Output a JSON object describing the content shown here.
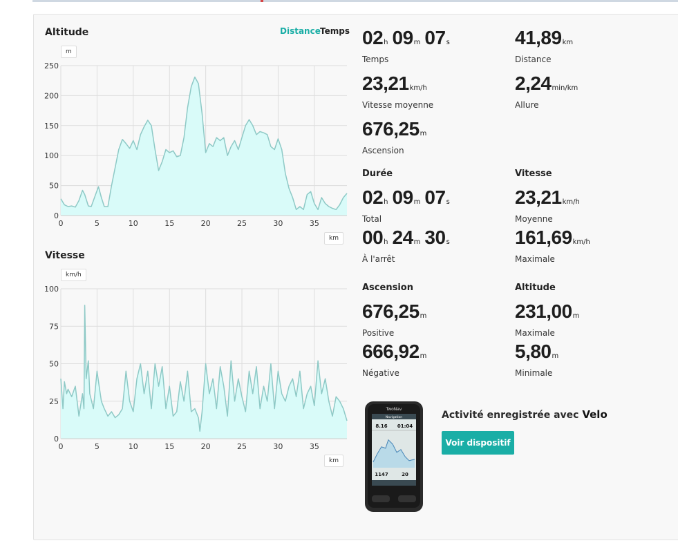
{
  "colors": {
    "accent": "#1aaea6",
    "fill": "#d9fbf9",
    "line": "#8ec9c6",
    "grid": "#dddddd"
  },
  "altitude_chart": {
    "title": "Altitude",
    "toggle_distance": "Distance",
    "toggle_time": "Temps",
    "y_unit": "m",
    "x_unit": "km"
  },
  "speed_chart": {
    "title": "Vitesse",
    "y_unit": "km/h",
    "x_unit": "km"
  },
  "chart_data": [
    {
      "type": "area",
      "title": "Altitude",
      "ylabel": "m",
      "xlabel": "km",
      "xlim": [
        0,
        39.5
      ],
      "ylim": [
        0,
        250
      ],
      "x_ticks": [
        0,
        5,
        10,
        15,
        20,
        25,
        30,
        35
      ],
      "y_ticks": [
        0,
        50,
        100,
        150,
        200,
        250
      ],
      "grid": true,
      "x": [
        0,
        0.5,
        1,
        1.5,
        2,
        2.5,
        3,
        3.3,
        3.8,
        4.2,
        4.8,
        5.2,
        5.6,
        6,
        6.5,
        7,
        7.5,
        8,
        8.5,
        9,
        9.5,
        10,
        10.5,
        11,
        11.5,
        12,
        12.5,
        13,
        13.5,
        14,
        14.5,
        15,
        15.5,
        16,
        16.5,
        17,
        17.5,
        18,
        18.5,
        19,
        19.5,
        20,
        20.5,
        21,
        21.5,
        22,
        22.5,
        23,
        23.5,
        24,
        24.5,
        25,
        25.5,
        26,
        26.5,
        27,
        27.5,
        28,
        28.5,
        29,
        29.5,
        30,
        30.5,
        31,
        31.5,
        32,
        32.5,
        33,
        33.5,
        34,
        34.5,
        35,
        35.5,
        36,
        36.5,
        37,
        37.5,
        38,
        38.5,
        39,
        39.5
      ],
      "values": [
        28,
        18,
        15,
        16,
        14,
        25,
        42,
        35,
        16,
        15,
        35,
        48,
        30,
        15,
        15,
        50,
        80,
        110,
        127,
        120,
        112,
        125,
        110,
        135,
        148,
        159,
        150,
        110,
        75,
        90,
        110,
        105,
        108,
        98,
        100,
        130,
        180,
        215,
        231,
        220,
        170,
        105,
        120,
        115,
        130,
        125,
        130,
        100,
        115,
        125,
        110,
        130,
        150,
        160,
        150,
        135,
        140,
        138,
        135,
        115,
        110,
        128,
        110,
        70,
        45,
        30,
        10,
        15,
        10,
        35,
        40,
        20,
        10,
        30,
        20,
        15,
        12,
        10,
        18,
        30,
        37
      ],
      "series": [
        {
          "name": "Altitude"
        }
      ]
    },
    {
      "type": "area",
      "title": "Vitesse",
      "ylabel": "km/h",
      "xlabel": "km",
      "xlim": [
        0,
        39.5
      ],
      "ylim": [
        0,
        100
      ],
      "x_ticks": [
        0,
        5,
        10,
        15,
        20,
        25,
        30,
        35
      ],
      "y_ticks": [
        0,
        25,
        50,
        75,
        100
      ],
      "grid": true,
      "x": [
        0,
        0.3,
        0.5,
        0.8,
        1,
        1.5,
        2,
        2.5,
        3,
        3.2,
        3.3,
        3.5,
        3.8,
        4,
        4.5,
        5,
        5.3,
        5.6,
        6,
        6.5,
        7,
        7.5,
        8,
        8.5,
        9,
        9.5,
        10,
        10.5,
        11,
        11.5,
        12,
        12.5,
        13,
        13.5,
        14,
        14.5,
        15,
        15.5,
        16,
        16.5,
        17,
        17.5,
        18,
        18.5,
        19,
        19.2,
        19.5,
        20,
        20.5,
        21,
        21.5,
        22,
        22.5,
        23,
        23.5,
        24,
        24.5,
        25,
        25.5,
        26,
        26.5,
        27,
        27.5,
        28,
        28.5,
        29,
        29.5,
        30,
        30.5,
        31,
        31.5,
        32,
        32.5,
        33,
        33.5,
        34,
        34.5,
        35,
        35.5,
        36,
        36.5,
        37,
        37.5,
        38,
        38.5,
        39,
        39.5
      ],
      "values": [
        40,
        20,
        38,
        30,
        33,
        28,
        35,
        15,
        30,
        20,
        89,
        40,
        52,
        30,
        20,
        45,
        35,
        25,
        20,
        15,
        18,
        14,
        16,
        20,
        45,
        25,
        18,
        40,
        50,
        30,
        45,
        20,
        50,
        35,
        48,
        20,
        35,
        15,
        18,
        38,
        25,
        45,
        18,
        20,
        14,
        5,
        18,
        50,
        30,
        40,
        20,
        48,
        35,
        15,
        52,
        25,
        40,
        28,
        18,
        45,
        30,
        48,
        20,
        35,
        25,
        50,
        20,
        45,
        30,
        25,
        35,
        40,
        28,
        45,
        20,
        30,
        35,
        22,
        52,
        30,
        40,
        25,
        15,
        28,
        25,
        20,
        12
      ],
      "series": [
        {
          "name": "Vitesse"
        }
      ]
    }
  ],
  "summary": {
    "time": {
      "h": "02",
      "hu": "h",
      "m": "09",
      "mu": "m",
      "s": "07",
      "su": "s",
      "label": "Temps"
    },
    "distance": {
      "value": "41,89",
      "unit": "km",
      "label": "Distance"
    },
    "avg_speed": {
      "value": "23,21",
      "unit": "km/h",
      "label": "Vitesse moyenne"
    },
    "pace": {
      "value": "2,24",
      "unit": "min/km",
      "label": "Allure"
    },
    "ascent": {
      "value": "676,25",
      "unit": "m",
      "label": "Ascension"
    }
  },
  "duration": {
    "heading": "Durée",
    "total": {
      "h": "02",
      "hu": "h",
      "m": "09",
      "mu": "m",
      "s": "07",
      "su": "s",
      "label": "Total"
    },
    "stopped": {
      "h": "00",
      "hu": "h",
      "m": "24",
      "mu": "m",
      "s": "30",
      "su": "s",
      "label": "À l'arrêt"
    }
  },
  "speed": {
    "heading": "Vitesse",
    "avg": {
      "value": "23,21",
      "unit": "km/h",
      "label": "Moyenne"
    },
    "max": {
      "value": "161,69",
      "unit": "km/h",
      "label": "Maximale"
    }
  },
  "ascent": {
    "heading": "Ascension",
    "pos": {
      "value": "676,25",
      "unit": "m",
      "label": "Positive"
    },
    "neg": {
      "value": "666,92",
      "unit": "m",
      "label": "Négative"
    }
  },
  "altitude": {
    "heading": "Altitude",
    "max": {
      "value": "231,00",
      "unit": "m",
      "label": "Maximale"
    },
    "min": {
      "value": "5,80",
      "unit": "m",
      "label": "Minimale"
    }
  },
  "device": {
    "recorded_with": "Activité enregistrée avec",
    "name": "Velo",
    "button": "Voir dispositif",
    "screen_brand": "TwoNav",
    "screen_title": "Navigation",
    "screen_val1": "8.16",
    "screen_val2": "01:04",
    "screen_val3": "1147",
    "screen_val4": "20"
  }
}
